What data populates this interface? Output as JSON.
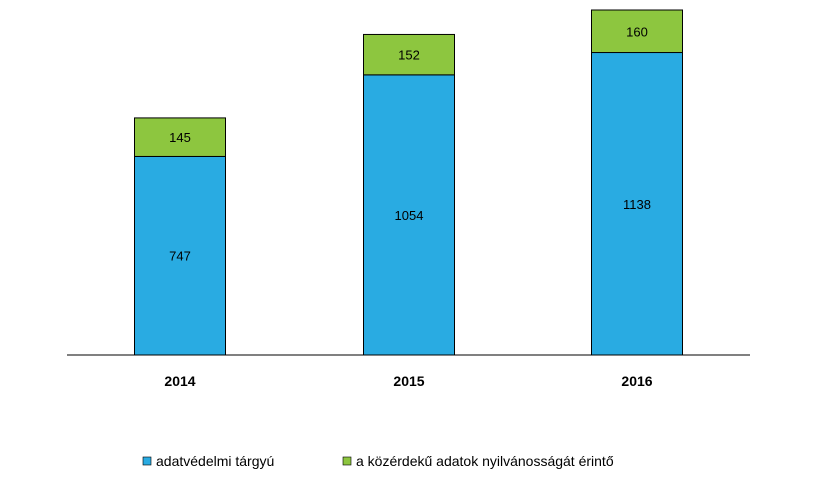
{
  "chart_data": {
    "type": "bar",
    "stacked": true,
    "title": "",
    "xlabel": "",
    "ylabel": "",
    "categories": [
      "2014",
      "2015",
      "2016"
    ],
    "series": [
      {
        "name": "adatvédelmi tárgyú",
        "values": [
          747,
          1054,
          1138
        ],
        "color": "#29ABE2"
      },
      {
        "name": "a közérdekű adatok nyilvánosságát érintő",
        "values": [
          145,
          152,
          160
        ],
        "color": "#8DC63F"
      }
    ],
    "ylim": [
      0,
      1298
    ],
    "grid": false,
    "legend": "bottom"
  },
  "legend": {
    "items": [
      "adatvédelmi tárgyú",
      "a közérdekű adatok nyilvánosságát érintő"
    ]
  }
}
